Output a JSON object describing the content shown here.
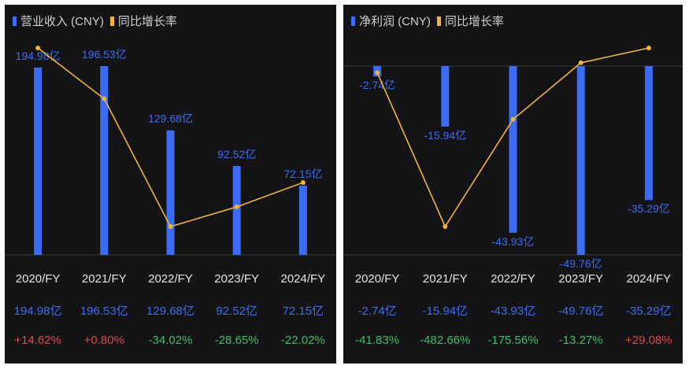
{
  "chart_data": [
    {
      "type": "bar",
      "legend": [
        "营业收入 (CNY)",
        "同比增长率"
      ],
      "categories": [
        "2020/FY",
        "2021/FY",
        "2022/FY",
        "2023/FY",
        "2024/FY"
      ],
      "series": [
        {
          "name": "营业收入 (CNY)",
          "values": [
            194.98,
            196.53,
            129.68,
            92.52,
            72.15
          ],
          "labels": [
            "194.98亿",
            "196.53亿",
            "129.68亿",
            "92.52亿",
            "72.15亿"
          ],
          "color": "#3b6cf5"
        },
        {
          "name": "同比增长率",
          "values": [
            14.62,
            0.8,
            -34.02,
            -28.65,
            -22.02
          ],
          "labels": [
            "+14.62%",
            "+0.80%",
            "-34.02%",
            "-28.65%",
            "-22.02%"
          ],
          "color": "#f0b43a"
        }
      ]
    },
    {
      "type": "bar",
      "legend": [
        "净利润 (CNY)",
        "同比增长率"
      ],
      "categories": [
        "2020/FY",
        "2021/FY",
        "2022/FY",
        "2023/FY",
        "2024/FY"
      ],
      "series": [
        {
          "name": "净利润 (CNY)",
          "values": [
            -2.74,
            -15.94,
            -43.93,
            -49.76,
            -35.29
          ],
          "labels": [
            "-2.74亿",
            "-15.94亿",
            "-43.93亿",
            "-49.76亿",
            "-35.29亿"
          ],
          "color": "#3b6cf5"
        },
        {
          "name": "同比增长率",
          "values": [
            -41.83,
            -482.66,
            -175.56,
            -13.27,
            29.08
          ],
          "labels": [
            "-41.83%",
            "-482.66%",
            "-175.56%",
            "-13.27%",
            "+29.08%"
          ],
          "color": "#f0b43a"
        }
      ]
    }
  ],
  "colors": {
    "bar": "#3b6cf5",
    "line": "#f0b43a",
    "positive": "#e04a4a",
    "negative": "#3fbf6a"
  }
}
